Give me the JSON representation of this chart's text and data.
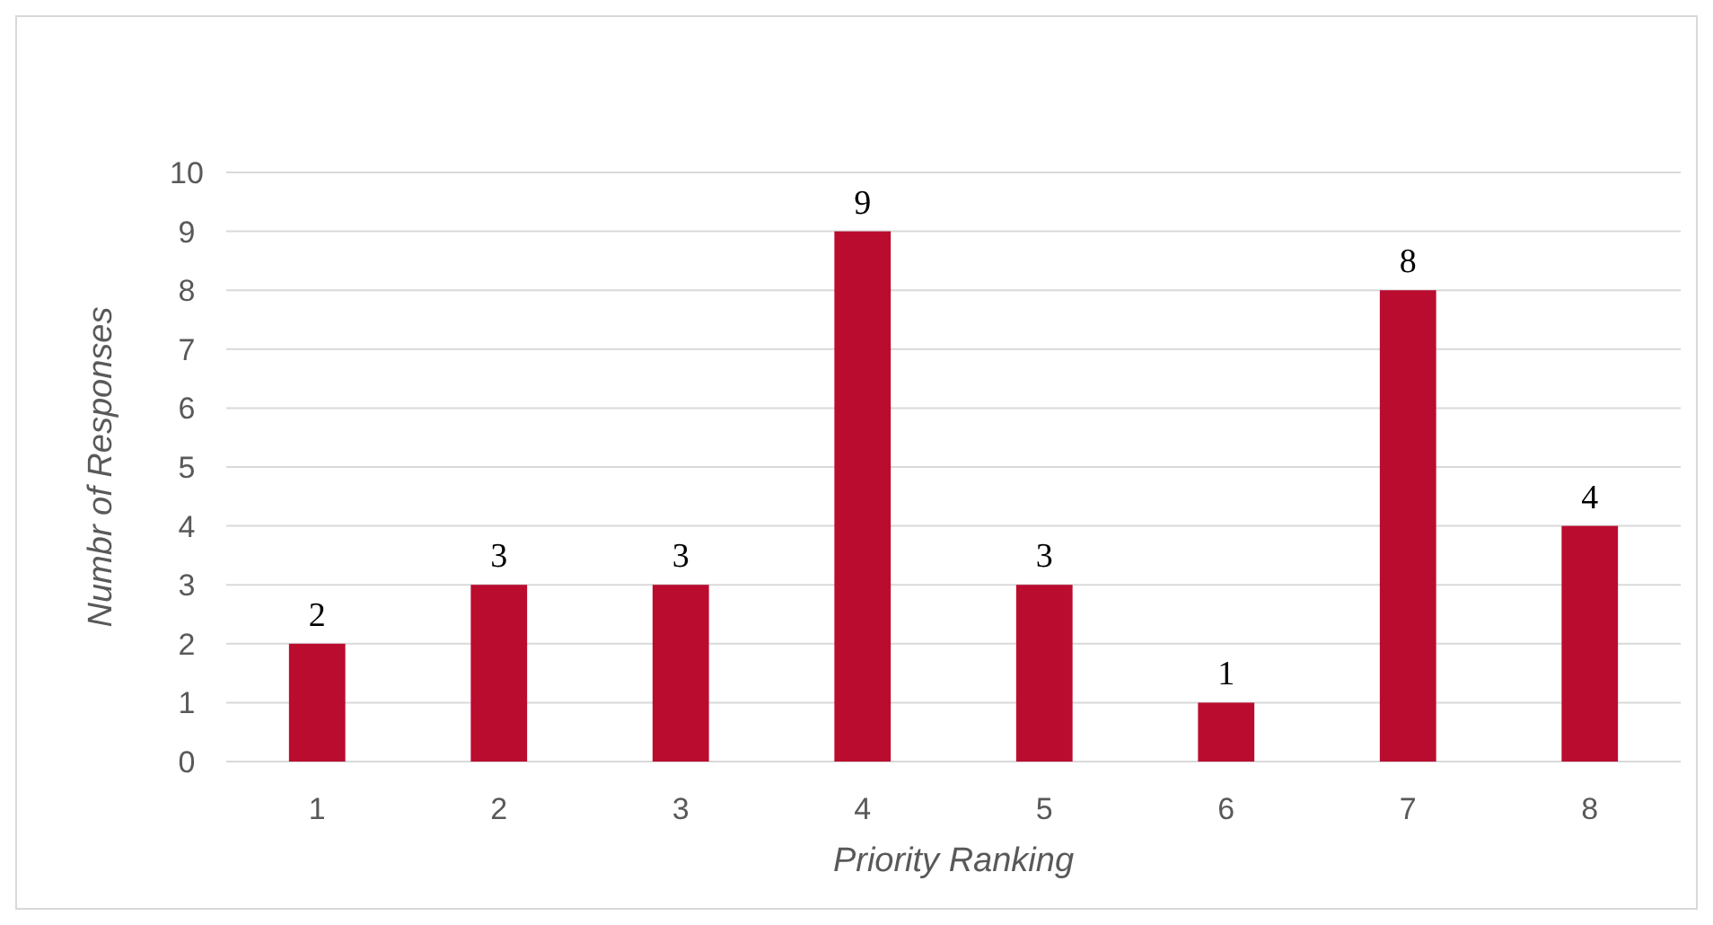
{
  "chart_data": {
    "type": "bar",
    "xlabel": "Priority Ranking",
    "ylabel": "Numbr of Responses",
    "categories": [
      "1",
      "2",
      "3",
      "4",
      "5",
      "6",
      "7",
      "8"
    ],
    "values": [
      2,
      3,
      3,
      9,
      3,
      1,
      8,
      4
    ],
    "color": "#ba0c2f",
    "ylim": [
      0,
      10
    ],
    "yticks": [
      0,
      1,
      2,
      3,
      4,
      5,
      6,
      7,
      8,
      9,
      10
    ],
    "grid": "y",
    "data_labels": true
  }
}
